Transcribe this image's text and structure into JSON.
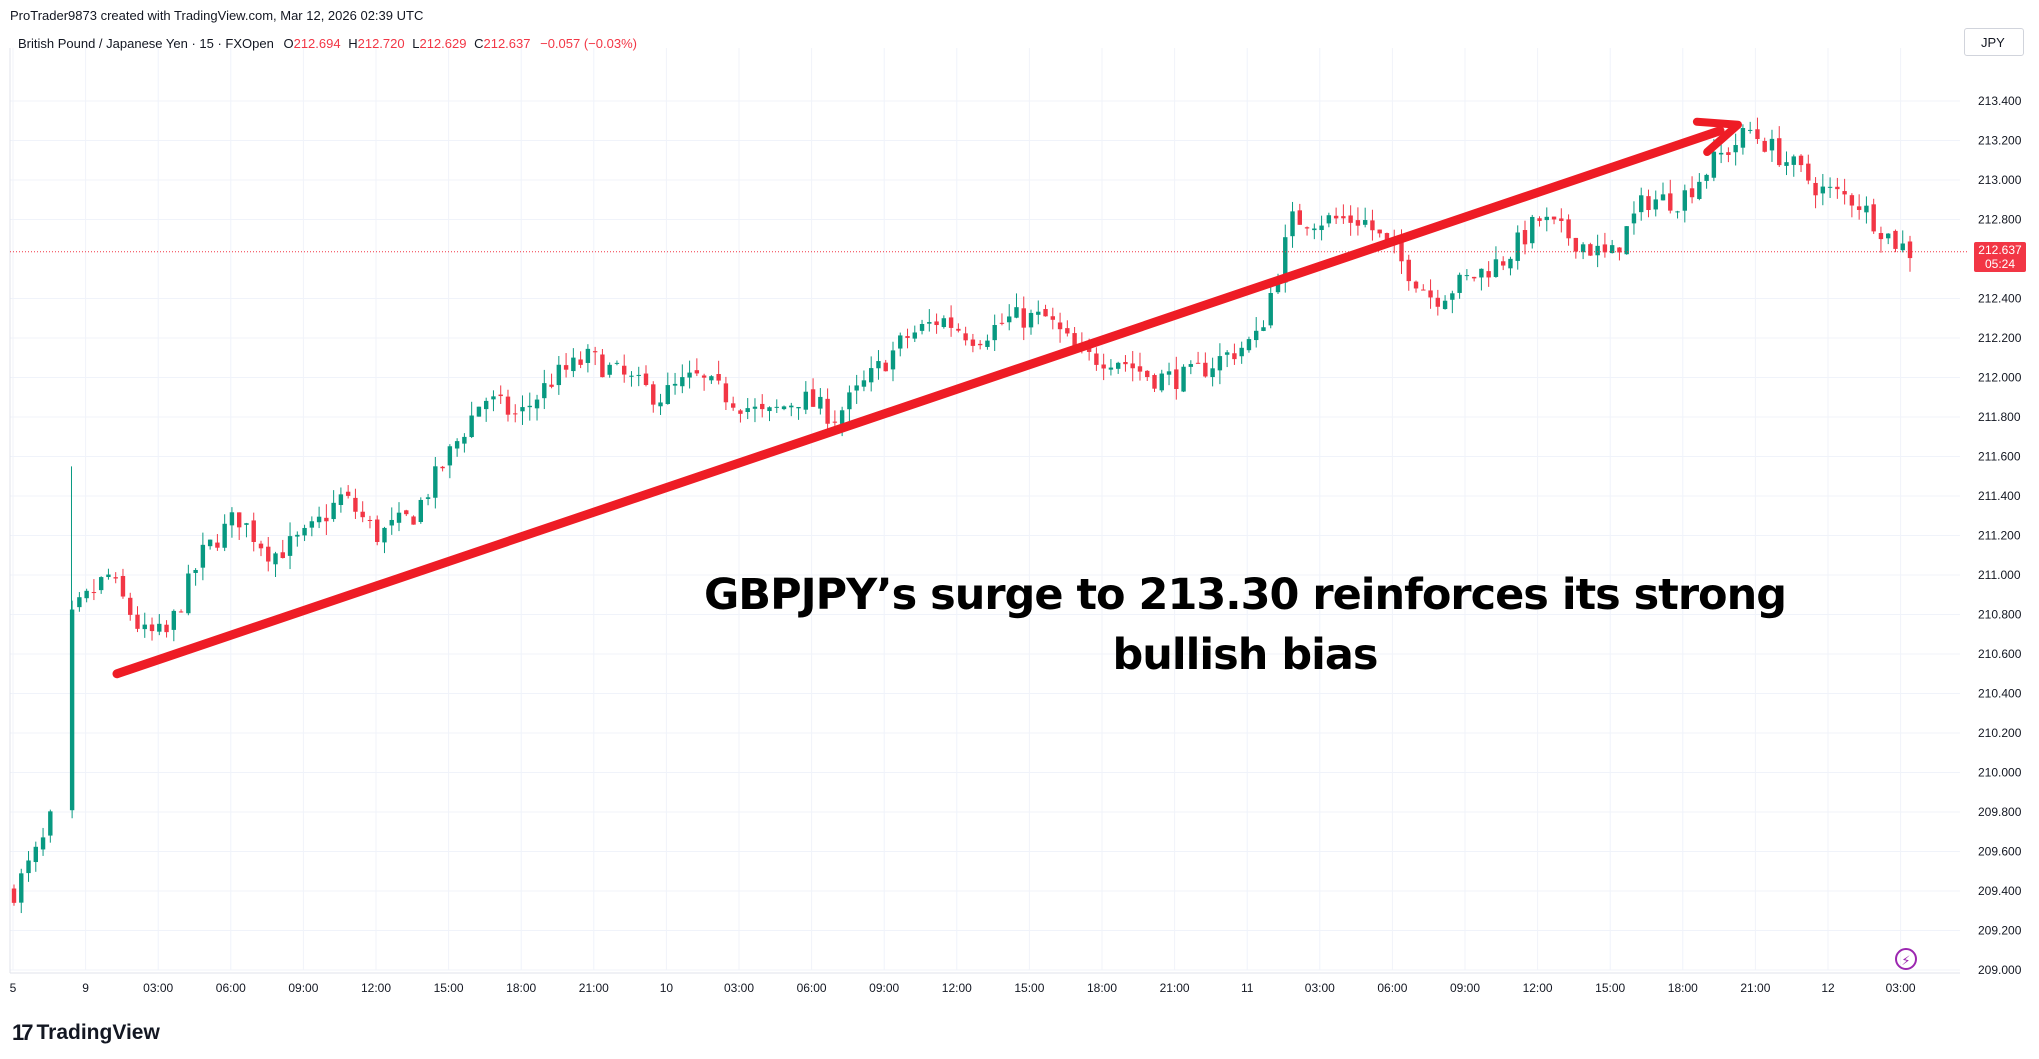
{
  "header": {
    "credit": "ProTrader9873 created with TradingView.com, Mar 12, 2026 02:39 UTC",
    "symbol": "British Pound / Japanese Yen · 15 · FXOpen",
    "open_label": "O",
    "open": "212.694",
    "high_label": "H",
    "high": "212.720",
    "low_label": "L",
    "low": "212.629",
    "close_label": "C",
    "close": "212.637",
    "change": "−0.057 (−0.03%)"
  },
  "currency": "JPY",
  "price_tag": {
    "price": "212.637",
    "countdown": "05:24"
  },
  "annotation": "GBPJPY’s surge to 213.30 reinforces its strong bullish bias",
  "footer": {
    "logo_mark": "17",
    "brand": "TradingView"
  },
  "icons": {
    "footer": "tradingview-logo-icon",
    "replay": "lightning-icon"
  },
  "colors": {
    "up": "#089981",
    "down": "#f23645",
    "arrow": "#ee1c25",
    "price_line": "#f23645"
  },
  "chart_data": {
    "type": "candlestick",
    "symbol": "GBPJPY",
    "timeframe": "15",
    "ylim": [
      208.9,
      213.5
    ],
    "y_ticks": [
      "213.400",
      "213.200",
      "213.000",
      "212.800",
      "212.400",
      "212.200",
      "212.000",
      "211.800",
      "211.600",
      "211.400",
      "211.200",
      "211.000",
      "210.800",
      "210.600",
      "210.400",
      "210.200",
      "210.000",
      "209.800",
      "209.600",
      "209.400",
      "209.200",
      "209.000"
    ],
    "x_ticks": [
      "5",
      "9",
      "03:00",
      "06:00",
      "09:00",
      "12:00",
      "15:00",
      "18:00",
      "21:00",
      "10",
      "03:00",
      "06:00",
      "09:00",
      "12:00",
      "15:00",
      "18:00",
      "21:00",
      "11",
      "03:00",
      "06:00",
      "09:00",
      "12:00",
      "15:00",
      "18:00",
      "21:00",
      "12",
      "03:00"
    ],
    "last_price": 212.637,
    "trend_arrow": {
      "from": {
        "x": "9 (~01:00)",
        "y": 210.5
      },
      "to": {
        "x": "11 19:30",
        "y": 213.3
      }
    },
    "path": [
      {
        "t": 0,
        "p": 209.4
      },
      {
        "t": 3,
        "p": 209.7
      },
      {
        "t": 5,
        "p": 210.8
      },
      {
        "t": 8,
        "p": 211.0
      },
      {
        "t": 11,
        "p": 210.7
      },
      {
        "t": 13,
        "p": 210.7
      },
      {
        "t": 16,
        "p": 211.1
      },
      {
        "t": 19,
        "p": 211.3
      },
      {
        "t": 22,
        "p": 211.1
      },
      {
        "t": 25,
        "p": 211.2
      },
      {
        "t": 28,
        "p": 211.4
      },
      {
        "t": 31,
        "p": 211.2
      },
      {
        "t": 34,
        "p": 211.3
      },
      {
        "t": 37,
        "p": 211.6
      },
      {
        "t": 40,
        "p": 211.9
      },
      {
        "t": 43,
        "p": 211.8
      },
      {
        "t": 46,
        "p": 212.0
      },
      {
        "t": 49,
        "p": 212.1
      },
      {
        "t": 52,
        "p": 212.0
      },
      {
        "t": 55,
        "p": 211.9
      },
      {
        "t": 58,
        "p": 212.0
      },
      {
        "t": 61,
        "p": 211.9
      },
      {
        "t": 64,
        "p": 211.8
      },
      {
        "t": 67,
        "p": 211.9
      },
      {
        "t": 70,
        "p": 211.8
      },
      {
        "t": 73,
        "p": 212.0
      },
      {
        "t": 76,
        "p": 212.2
      },
      {
        "t": 79,
        "p": 212.3
      },
      {
        "t": 82,
        "p": 212.2
      },
      {
        "t": 85,
        "p": 212.3
      },
      {
        "t": 88,
        "p": 212.3
      },
      {
        "t": 91,
        "p": 212.1
      },
      {
        "t": 94,
        "p": 212.1
      },
      {
        "t": 97,
        "p": 212.0
      },
      {
        "t": 100,
        "p": 212.0
      },
      {
        "t": 103,
        "p": 212.1
      },
      {
        "t": 106,
        "p": 212.2
      },
      {
        "t": 109,
        "p": 212.8
      },
      {
        "t": 112,
        "p": 212.8
      },
      {
        "t": 115,
        "p": 212.8
      },
      {
        "t": 118,
        "p": 212.6
      },
      {
        "t": 121,
        "p": 212.4
      },
      {
        "t": 124,
        "p": 212.5
      },
      {
        "t": 127,
        "p": 212.6
      },
      {
        "t": 130,
        "p": 212.8
      },
      {
        "t": 133,
        "p": 212.7
      },
      {
        "t": 136,
        "p": 212.6
      },
      {
        "t": 139,
        "p": 212.9
      },
      {
        "t": 142,
        "p": 212.9
      },
      {
        "t": 145,
        "p": 213.1
      },
      {
        "t": 148,
        "p": 213.25
      },
      {
        "t": 151,
        "p": 213.1
      },
      {
        "t": 154,
        "p": 212.95
      },
      {
        "t": 157,
        "p": 212.9
      },
      {
        "t": 160,
        "p": 212.7
      },
      {
        "t": 161.6,
        "p": 212.637
      }
    ]
  }
}
